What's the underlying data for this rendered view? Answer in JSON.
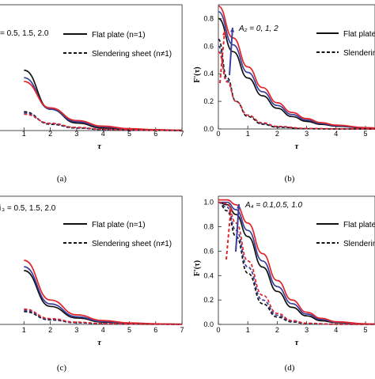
{
  "figure": {
    "colors": {
      "black": "#111111",
      "blue": "#3a3f9b",
      "red": "#e0262b"
    }
  },
  "chart_data": [
    {
      "type": "line",
      "caption": "(a)",
      "xlabel": "τ",
      "ylabel": "",
      "xlim": [
        0,
        7
      ],
      "ylim": [
        0,
        1
      ],
      "x_ticks": [
        "1",
        "2",
        "3",
        "4",
        "5",
        "6",
        "7"
      ],
      "y_ticks": [],
      "annotation": "= 0.5, 1.5, 2.0",
      "annotation_arrow": false,
      "legend": [
        "Flat plate (n=1)",
        "Slendering sheet (n≠1)"
      ],
      "series": [
        {
          "color": "black",
          "dash": false,
          "x": [
            1,
            2,
            3,
            4,
            5,
            6,
            7
          ],
          "y": [
            0.48,
            0.17,
            0.06,
            0.02,
            0.008,
            0.003,
            0.001
          ]
        },
        {
          "color": "blue",
          "dash": false,
          "x": [
            1,
            2,
            3,
            4,
            5,
            6,
            7
          ],
          "y": [
            0.42,
            0.17,
            0.07,
            0.03,
            0.012,
            0.005,
            0.002
          ]
        },
        {
          "color": "red",
          "dash": false,
          "x": [
            1,
            2,
            3,
            4,
            5,
            6,
            7
          ],
          "y": [
            0.39,
            0.18,
            0.08,
            0.035,
            0.015,
            0.007,
            0.003
          ]
        },
        {
          "color": "black",
          "dash": true,
          "x": [
            1,
            2,
            3,
            4,
            5,
            6,
            7
          ],
          "y": [
            0.15,
            0.05,
            0.02,
            0.008,
            0.003,
            0.001,
            0.0
          ]
        },
        {
          "color": "blue",
          "dash": true,
          "x": [
            1,
            2,
            3,
            4,
            5,
            6,
            7
          ],
          "y": [
            0.14,
            0.055,
            0.022,
            0.009,
            0.004,
            0.002,
            0.001
          ]
        },
        {
          "color": "red",
          "dash": true,
          "x": [
            1,
            2,
            3,
            4,
            5,
            6,
            7
          ],
          "y": [
            0.13,
            0.058,
            0.025,
            0.011,
            0.005,
            0.002,
            0.001
          ]
        }
      ]
    },
    {
      "type": "line",
      "caption": "(b)",
      "xlabel": "τ",
      "ylabel": "F'(τ)",
      "xlim": [
        0,
        5.5
      ],
      "ylim": [
        0,
        0.9
      ],
      "x_ticks": [
        "0",
        "1",
        "2",
        "3",
        "4",
        "5"
      ],
      "y_ticks": [
        "0.0",
        "0.2",
        "0.4",
        "0.6",
        "0.8"
      ],
      "annotation": "A₂ = 0, 1, 2",
      "annotation_arrow": true,
      "legend": [
        "Flat plate (n=1)",
        "Slendering sheet"
      ],
      "series": [
        {
          "color": "black",
          "dash": false,
          "x": [
            0,
            0.5,
            1,
            1.5,
            2,
            2.5,
            3,
            3.5,
            4,
            5,
            5.5
          ],
          "y": [
            0.8,
            0.56,
            0.37,
            0.24,
            0.15,
            0.09,
            0.055,
            0.033,
            0.02,
            0.007,
            0.004
          ]
        },
        {
          "color": "blue",
          "dash": false,
          "x": [
            0,
            0.5,
            1,
            1.5,
            2,
            2.5,
            3,
            3.5,
            4,
            5,
            5.5
          ],
          "y": [
            0.85,
            0.61,
            0.41,
            0.27,
            0.17,
            0.105,
            0.065,
            0.04,
            0.024,
            0.009,
            0.005
          ]
        },
        {
          "color": "red",
          "dash": false,
          "x": [
            0,
            0.5,
            1,
            1.5,
            2,
            2.5,
            3,
            3.5,
            4,
            5,
            5.5
          ],
          "y": [
            0.89,
            0.66,
            0.45,
            0.3,
            0.19,
            0.12,
            0.075,
            0.046,
            0.028,
            0.01,
            0.006
          ]
        },
        {
          "color": "black",
          "dash": true,
          "x": [
            0,
            0.3,
            0.6,
            1,
            1.5,
            2,
            3,
            4,
            5.5
          ],
          "y": [
            0.65,
            0.37,
            0.2,
            0.09,
            0.035,
            0.013,
            0.002,
            0.0,
            0.0
          ]
        },
        {
          "color": "blue",
          "dash": true,
          "x": [
            0,
            0.3,
            0.6,
            1,
            1.5,
            2,
            3,
            4,
            5.5
          ],
          "y": [
            0.6,
            0.35,
            0.2,
            0.1,
            0.04,
            0.016,
            0.003,
            0.001,
            0.0
          ]
        },
        {
          "color": "red",
          "dash": true,
          "x": [
            0,
            0.3,
            0.6,
            1,
            1.5,
            2,
            3,
            4,
            5.5
          ],
          "y": [
            0.56,
            0.34,
            0.2,
            0.1,
            0.045,
            0.019,
            0.004,
            0.001,
            0.0
          ]
        }
      ]
    },
    {
      "type": "line",
      "caption": "(c)",
      "xlabel": "τ",
      "ylabel": "",
      "xlim": [
        0,
        7
      ],
      "ylim": [
        0,
        1
      ],
      "x_ticks": [
        "1",
        "2",
        "3",
        "4",
        "5",
        "6",
        "7"
      ],
      "y_ticks": [],
      "annotation": "₃ = 0.5, 1.5, 2.0",
      "annotation_prefix": "i",
      "annotation_arrow": false,
      "legend": [
        "Flat plate (n=1)",
        "Slendering sheet (n≠1)"
      ],
      "series": [
        {
          "color": "black",
          "dash": false,
          "x": [
            1,
            2,
            3,
            4,
            5,
            6,
            7
          ],
          "y": [
            0.42,
            0.14,
            0.05,
            0.018,
            0.007,
            0.003,
            0.001
          ]
        },
        {
          "color": "blue",
          "dash": false,
          "x": [
            1,
            2,
            3,
            4,
            5,
            6,
            7
          ],
          "y": [
            0.45,
            0.16,
            0.06,
            0.022,
            0.009,
            0.004,
            0.002
          ]
        },
        {
          "color": "red",
          "dash": false,
          "x": [
            1,
            2,
            3,
            4,
            5,
            6,
            7
          ],
          "y": [
            0.5,
            0.19,
            0.075,
            0.03,
            0.012,
            0.005,
            0.002
          ]
        },
        {
          "color": "black",
          "dash": true,
          "x": [
            1,
            2,
            3,
            4,
            5,
            6,
            7
          ],
          "y": [
            0.1,
            0.035,
            0.013,
            0.005,
            0.002,
            0.001,
            0.0
          ]
        },
        {
          "color": "blue",
          "dash": true,
          "x": [
            1,
            2,
            3,
            4,
            5,
            6,
            7
          ],
          "y": [
            0.11,
            0.04,
            0.015,
            0.006,
            0.0025,
            0.001,
            0.0
          ]
        },
        {
          "color": "red",
          "dash": true,
          "x": [
            1,
            2,
            3,
            4,
            5,
            6,
            7
          ],
          "y": [
            0.12,
            0.045,
            0.018,
            0.007,
            0.003,
            0.001,
            0.0
          ]
        }
      ]
    },
    {
      "type": "line",
      "caption": "(d)",
      "xlabel": "τ",
      "ylabel": "F'(τ)",
      "xlim": [
        0,
        5.5
      ],
      "ylim": [
        0,
        1.05
      ],
      "x_ticks": [
        "0",
        "1",
        "2",
        "3",
        "4",
        "5"
      ],
      "y_ticks": [
        "0.0",
        "0.2",
        "0.4",
        "0.6",
        "0.8",
        "1.0"
      ],
      "annotation": "A₄ = 0.1,0.5, 1.0",
      "annotation_arrow": true,
      "legend": [
        "Flat plate (n=1)",
        "Slendering"
      ],
      "series": [
        {
          "color": "black",
          "dash": false,
          "x": [
            0,
            0.3,
            0.6,
            1,
            1.5,
            2,
            2.5,
            3,
            3.5,
            4,
            5,
            5.5
          ],
          "y": [
            1.0,
            0.98,
            0.9,
            0.72,
            0.47,
            0.27,
            0.14,
            0.07,
            0.03,
            0.014,
            0.003,
            0.001
          ]
        },
        {
          "color": "blue",
          "dash": false,
          "x": [
            0,
            0.3,
            0.6,
            1,
            1.5,
            2,
            2.5,
            3,
            3.5,
            4,
            5,
            5.5
          ],
          "y": [
            1.0,
            1.0,
            0.94,
            0.77,
            0.52,
            0.31,
            0.17,
            0.085,
            0.04,
            0.018,
            0.004,
            0.002
          ]
        },
        {
          "color": "red",
          "dash": false,
          "x": [
            0,
            0.3,
            0.6,
            1,
            1.5,
            2,
            2.5,
            3,
            3.5,
            4,
            5,
            5.5
          ],
          "y": [
            1.02,
            1.02,
            0.98,
            0.83,
            0.58,
            0.36,
            0.2,
            0.1,
            0.05,
            0.022,
            0.005,
            0.002
          ]
        },
        {
          "color": "black",
          "dash": true,
          "x": [
            0,
            0.3,
            0.6,
            1,
            1.5,
            2,
            2.5,
            3,
            4,
            5.5
          ],
          "y": [
            1.0,
            0.93,
            0.72,
            0.42,
            0.17,
            0.06,
            0.02,
            0.006,
            0.001,
            0.0
          ]
        },
        {
          "color": "blue",
          "dash": true,
          "x": [
            0,
            0.3,
            0.6,
            1,
            1.5,
            2,
            2.5,
            3,
            4,
            5.5
          ],
          "y": [
            1.0,
            0.96,
            0.77,
            0.47,
            0.2,
            0.075,
            0.026,
            0.008,
            0.001,
            0.0
          ]
        },
        {
          "color": "red",
          "dash": true,
          "x": [
            0,
            0.3,
            0.6,
            1,
            1.5,
            2,
            2.5,
            3,
            4,
            5.5
          ],
          "y": [
            1.0,
            0.99,
            0.83,
            0.52,
            0.24,
            0.09,
            0.032,
            0.01,
            0.001,
            0.0
          ]
        }
      ]
    }
  ]
}
